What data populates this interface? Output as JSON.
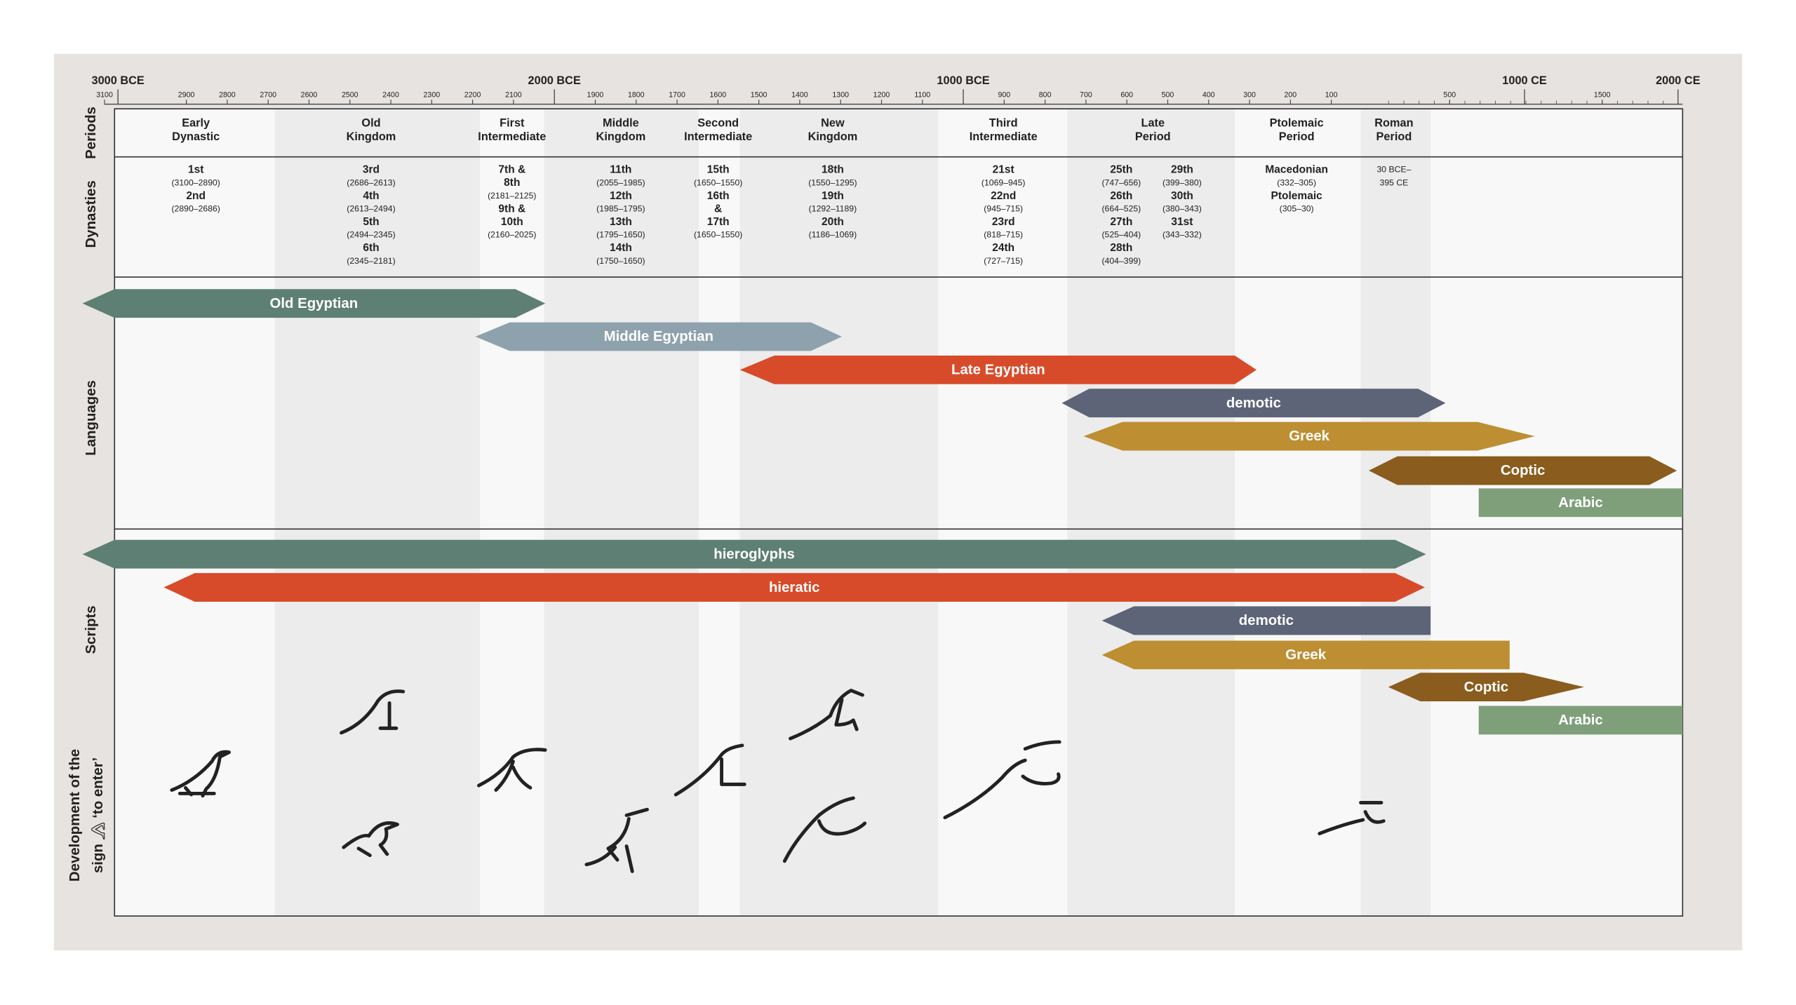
{
  "axis": {
    "major": [
      "3000 BCE",
      "2000 BCE",
      "1000 BCE",
      "1000 CE",
      "2000 CE"
    ],
    "bce_ticks": [
      3100,
      2900,
      2800,
      2700,
      2600,
      2500,
      2400,
      2300,
      2200,
      2100,
      1900,
      1800,
      1700,
      1600,
      1500,
      1400,
      1300,
      1200,
      1100,
      900,
      800,
      700,
      600,
      500,
      400,
      300,
      200,
      100
    ],
    "ce_ticks": [
      500,
      1500
    ]
  },
  "section_labels": {
    "periods": "Periods",
    "dynasties": "Dynasties",
    "languages": "Languages",
    "scripts": "Scripts",
    "development": [
      "Development of the",
      "sign 𓂻 ‘to enter’"
    ]
  },
  "periods": [
    {
      "label": [
        "Early",
        "Dynastic"
      ],
      "dynasties": [
        [
          "1st",
          "(3100–2890)",
          "2nd",
          "(2890–2686)"
        ]
      ]
    },
    {
      "label": [
        "Old",
        "Kingdom"
      ],
      "dynasties": [
        [
          "3rd",
          "(2686–2613)",
          "4th",
          "(2613–2494)",
          "5th",
          "(2494–2345)",
          "6th",
          "(2345–2181)"
        ]
      ]
    },
    {
      "label": [
        "First",
        "Intermediate"
      ],
      "dynasties": [
        [
          "7th &",
          "8th",
          "(2181–2125)",
          "9th &",
          "10th",
          "(2160–2025)"
        ]
      ]
    },
    {
      "label": [
        "Middle",
        "Kingdom"
      ],
      "dynasties": [
        [
          "11th",
          "(2055–1985)",
          "12th",
          "(1985–1795)",
          "13th",
          "(1795–1650)",
          "14th",
          "(1750–1650)"
        ]
      ]
    },
    {
      "label": [
        "Second",
        "Intermediate"
      ],
      "dynasties": [
        [
          "15th",
          "(1650–1550)",
          "16th",
          "&",
          "17th",
          "(1650–1550)"
        ]
      ]
    },
    {
      "label": [
        "New",
        "Kingdom"
      ],
      "dynasties": [
        [
          "18th",
          "(1550–1295)",
          "19th",
          "(1292–1189)",
          "20th",
          "(1186–1069)"
        ]
      ]
    },
    {
      "label": [
        "Third",
        "Intermediate"
      ],
      "dynasties": [
        [
          "21st",
          "(1069–945)",
          "22nd",
          "(945–715)",
          "23rd",
          "(818–715)",
          "24th",
          "(727–715)"
        ]
      ]
    },
    {
      "label": [
        "Late",
        "Period"
      ],
      "dynasties": [
        [
          "25th",
          "(747–656)",
          "26th",
          "(664–525)",
          "27th",
          "(525–404)",
          "28th",
          "(404–399)"
        ],
        [
          "29th",
          "(399–380)",
          "30th",
          "(380–343)",
          "31st",
          "(343–332)"
        ]
      ]
    },
    {
      "label": [
        "Ptolemaic",
        "Period"
      ],
      "dynasties": [
        [
          "Macedonian",
          "(332–305)",
          "Ptolemaic",
          "(305–30)"
        ]
      ]
    },
    {
      "label": [
        "Roman",
        "Period"
      ],
      "dynasties": [
        [
          "30 BCE–",
          "395 CE"
        ]
      ]
    }
  ],
  "languages": [
    {
      "name": "Old Egyptian",
      "color": "#5e7f73"
    },
    {
      "name": "Middle Egyptian",
      "color": "#8ea2ad"
    },
    {
      "name": "Late Egyptian",
      "color": "#d84b2a"
    },
    {
      "name": "demotic",
      "color": "#5d6478"
    },
    {
      "name": "Greek",
      "color": "#be8e33"
    },
    {
      "name": "Coptic",
      "color": "#8a5c1d"
    },
    {
      "name": "Arabic",
      "color": "#7e9f7a"
    }
  ],
  "scripts": [
    {
      "name": "hieroglyphs",
      "color": "#5e7f73"
    },
    {
      "name": "hieratic",
      "color": "#d84b2a"
    },
    {
      "name": "demotic",
      "color": "#5d6478"
    },
    {
      "name": "Greek",
      "color": "#be8e33"
    },
    {
      "name": "Coptic",
      "color": "#8a5c1d"
    },
    {
      "name": "Arabic",
      "color": "#7e9f7a"
    }
  ]
}
